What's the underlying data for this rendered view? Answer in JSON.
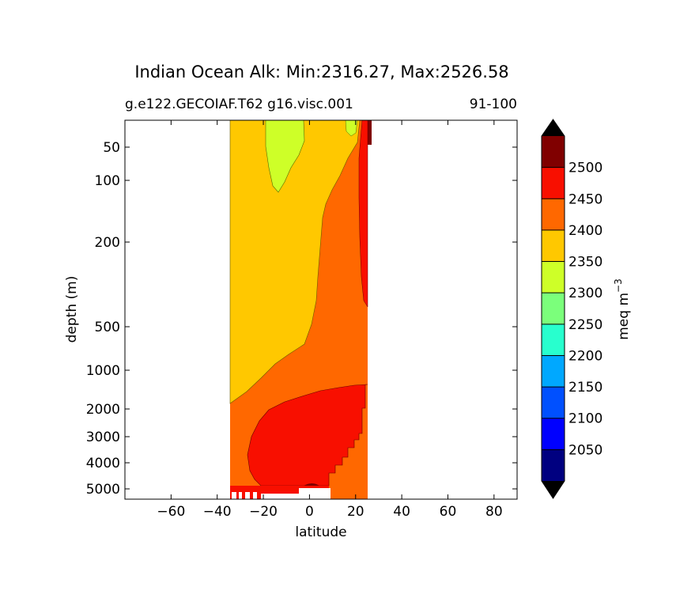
{
  "chart_data": {
    "type": "contour",
    "title": "Indian Ocean Alk: Min:2316.27, Max:2526.58",
    "subtitle_left": "g.e122.GECOIAF.T62 g16.visc.001",
    "subtitle_right": "91-100",
    "xlabel": "latitude",
    "ylabel": "depth (m)",
    "x_ticks": [
      "−60",
      "−40",
      "−20",
      "0",
      "20",
      "40",
      "60",
      "80"
    ],
    "x_tick_values": [
      -60,
      -40,
      -20,
      0,
      20,
      40,
      60,
      80
    ],
    "y_ticks": [
      "50",
      "100",
      "200",
      "500",
      "1000",
      "2000",
      "3000",
      "4000",
      "5000"
    ],
    "xlim": [
      -80,
      90
    ],
    "ylim": [
      5500,
      0
    ],
    "y_scale": "piecewise depth",
    "colorbar": {
      "label": "meq m",
      "label_superscript": "−3",
      "ticks": [
        "2050",
        "2100",
        "2150",
        "2200",
        "2250",
        "2300",
        "2350",
        "2400",
        "2450",
        "2500"
      ],
      "levels": [
        2000,
        2050,
        2100,
        2150,
        2200,
        2250,
        2300,
        2350,
        2400,
        2450,
        2500,
        2550
      ],
      "colors": [
        "#000080",
        "#0000ff",
        "#0050ff",
        "#00a8ff",
        "#28ffce",
        "#7bff7b",
        "#ceff28",
        "#ffc800",
        "#ff6800",
        "#f80f00",
        "#800000"
      ],
      "extend": "both",
      "extend_color": "#000000"
    },
    "data_extent": {
      "lat_min": -34,
      "lat_max": 26
    },
    "regions": [
      {
        "band": "2300-2350",
        "color": "#ceff28",
        "description": "near-surface tongue centred near -15 latitude, to ~110 m"
      },
      {
        "band": "2350-2400",
        "color": "#ffc800",
        "description": "upper ocean south of ~5N down to ~1800 m at -34"
      },
      {
        "band": "2400-2450",
        "color": "#ff6800",
        "description": "intermediate waters and northern upper ocean"
      },
      {
        "band": "2450-2500",
        "color": "#f80f00",
        "description": "deep water below ~2000 m and narrow strip near 24N"
      },
      {
        "band": "2500-2550",
        "color": "#800000",
        "description": "small patches at surface near 26N and bottom near 0"
      }
    ]
  }
}
